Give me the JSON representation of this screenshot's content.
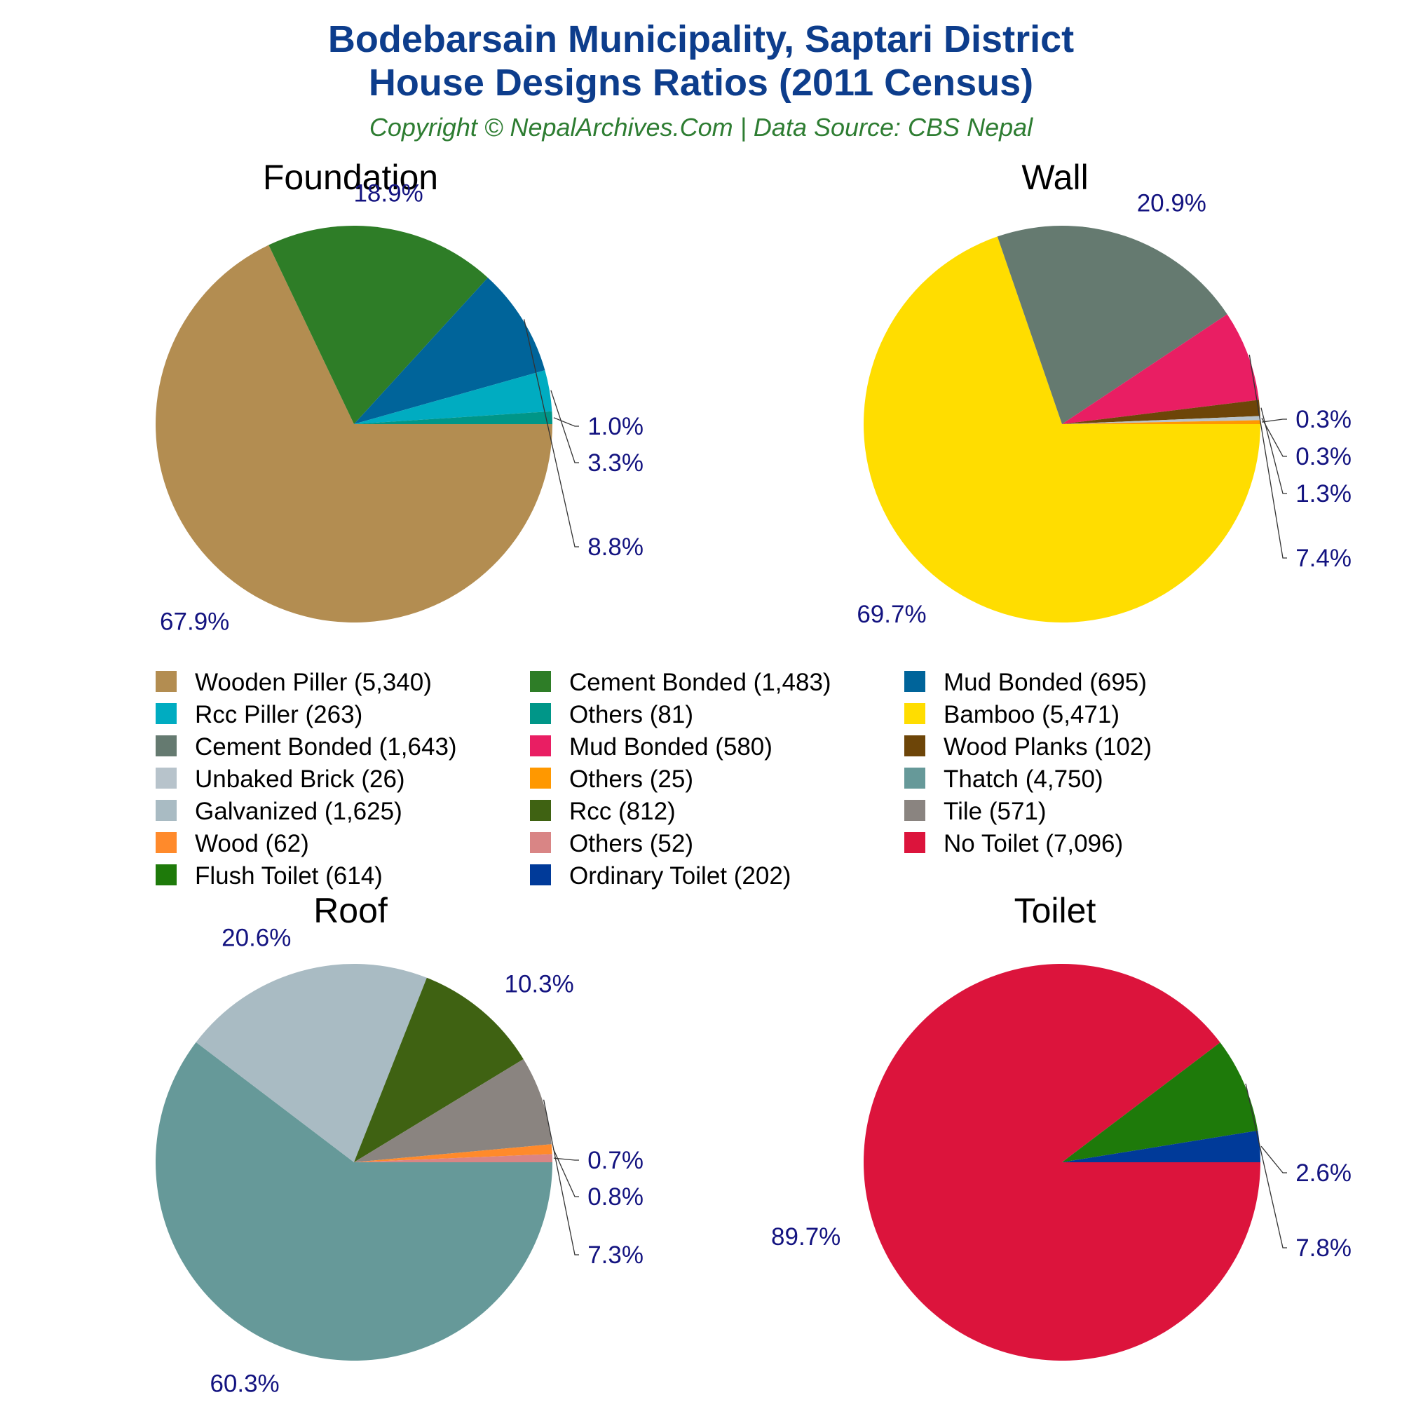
{
  "header": {
    "title_line1": "Bodebarsain Municipality, Saptari District",
    "title_line2": "House Designs Ratios (2011 Census)",
    "subtitle": "Copyright © NepalArchives.Com | Data Source: CBS Nepal"
  },
  "chart_data": [
    {
      "type": "pie",
      "title": "Foundation",
      "slices": [
        {
          "label": "Wooden Piller",
          "value": 5340,
          "percent_label": "67.9%",
          "color": "#b38d51"
        },
        {
          "label": "Cement Bonded",
          "value": 1483,
          "percent_label": "18.9%",
          "color": "#2e7d27"
        },
        {
          "label": "Mud Bonded",
          "value": 695,
          "percent_label": "8.8%",
          "color": "#00649a"
        },
        {
          "label": "Rcc Piller",
          "value": 263,
          "percent_label": "3.3%",
          "color": "#00acc1"
        },
        {
          "label": "Others",
          "value": 81,
          "percent_label": "1.0%",
          "color": "#009688"
        }
      ]
    },
    {
      "type": "pie",
      "title": "Wall",
      "slices": [
        {
          "label": "Bamboo",
          "value": 5471,
          "percent_label": "69.7%",
          "color": "#ffdd00"
        },
        {
          "label": "Cement Bonded",
          "value": 1643,
          "percent_label": "20.9%",
          "color": "#657a70"
        },
        {
          "label": "Mud Bonded",
          "value": 580,
          "percent_label": "7.4%",
          "color": "#e91e63"
        },
        {
          "label": "Wood Planks",
          "value": 102,
          "percent_label": "1.3%",
          "color": "#6d4508"
        },
        {
          "label": "Unbaked Brick",
          "value": 26,
          "percent_label": "0.3%",
          "color": "#b7c3cb"
        },
        {
          "label": "Others",
          "value": 25,
          "percent_label": "0.3%",
          "color": "#ff9800"
        }
      ]
    },
    {
      "type": "pie",
      "title": "Roof",
      "slices": [
        {
          "label": "Thatch",
          "value": 4750,
          "percent_label": "60.3%",
          "color": "#669999"
        },
        {
          "label": "Galvanized",
          "value": 1625,
          "percent_label": "20.6%",
          "color": "#a9bbc3"
        },
        {
          "label": "Rcc",
          "value": 812,
          "percent_label": "10.3%",
          "color": "#3f6212"
        },
        {
          "label": "Tile",
          "value": 571,
          "percent_label": "7.3%",
          "color": "#8a8480"
        },
        {
          "label": "Wood",
          "value": 62,
          "percent_label": "0.8%",
          "color": "#ff8a2b"
        },
        {
          "label": "Others",
          "value": 52,
          "percent_label": "0.7%",
          "color": "#d98585"
        }
      ]
    },
    {
      "type": "pie",
      "title": "Toilet",
      "slices": [
        {
          "label": "No Toilet",
          "value": 7096,
          "percent_label": "89.7%",
          "color": "#dc143c"
        },
        {
          "label": "Flush Toilet",
          "value": 614,
          "percent_label": "7.8%",
          "color": "#1e7a0a"
        },
        {
          "label": "Ordinary Toilet",
          "value": 202,
          "percent_label": "2.6%",
          "color": "#003a99"
        }
      ]
    }
  ],
  "legend": [
    {
      "text": "Wooden Piller (5,340)",
      "color": "#b38d51"
    },
    {
      "text": "Cement Bonded (1,483)",
      "color": "#2e7d27"
    },
    {
      "text": "Mud Bonded (695)",
      "color": "#00649a"
    },
    {
      "text": "Rcc Piller (263)",
      "color": "#00acc1"
    },
    {
      "text": "Others (81)",
      "color": "#009688"
    },
    {
      "text": "Bamboo (5,471)",
      "color": "#ffdd00"
    },
    {
      "text": "Cement Bonded (1,643)",
      "color": "#657a70"
    },
    {
      "text": "Mud Bonded (580)",
      "color": "#e91e63"
    },
    {
      "text": "Wood Planks (102)",
      "color": "#6d4508"
    },
    {
      "text": "Unbaked Brick (26)",
      "color": "#b7c3cb"
    },
    {
      "text": "Others (25)",
      "color": "#ff9800"
    },
    {
      "text": "Thatch (4,750)",
      "color": "#669999"
    },
    {
      "text": "Galvanized (1,625)",
      "color": "#a9bbc3"
    },
    {
      "text": "Rcc (812)",
      "color": "#3f6212"
    },
    {
      "text": "Tile (571)",
      "color": "#8a8480"
    },
    {
      "text": "Wood (62)",
      "color": "#ff8a2b"
    },
    {
      "text": "Others (52)",
      "color": "#d98585"
    },
    {
      "text": "No Toilet (7,096)",
      "color": "#dc143c"
    },
    {
      "text": "Flush Toilet (614)",
      "color": "#1e7a0a"
    },
    {
      "text": "Ordinary Toilet (202)",
      "color": "#003a99"
    }
  ]
}
